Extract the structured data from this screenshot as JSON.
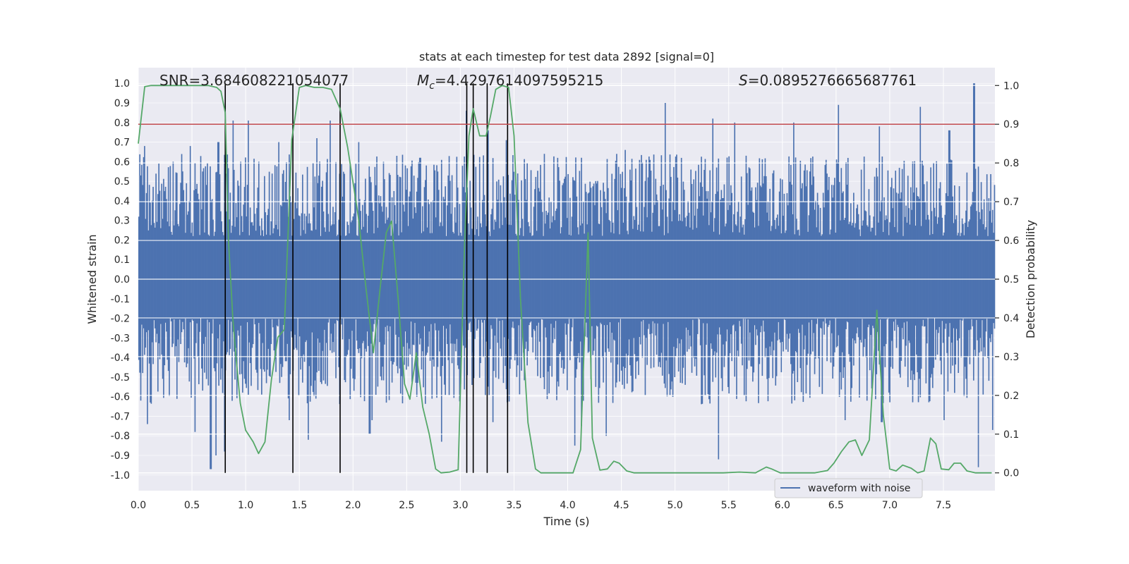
{
  "chart_data": {
    "type": "line",
    "title": "stats at each timestep for test data 2892 [signal=0]",
    "xlabel": "Time (s)",
    "ylabel": "Whitened strain",
    "y2label": "Detection probability",
    "xlim": [
      0.0,
      7.98
    ],
    "ylim": [
      -1.08,
      1.08
    ],
    "y2lim": [
      -0.046,
      1.046
    ],
    "x_ticks": [
      0.0,
      0.5,
      1.0,
      1.5,
      2.0,
      2.5,
      3.0,
      3.5,
      4.0,
      4.5,
      5.0,
      5.5,
      6.0,
      6.5,
      7.0,
      7.5
    ],
    "x_tick_labels": [
      "0.0",
      "0.5",
      "1.0",
      "1.5",
      "2.0",
      "2.5",
      "3.0",
      "3.5",
      "4.0",
      "4.5",
      "5.0",
      "5.5",
      "6.0",
      "6.5",
      "7.0",
      "7.5"
    ],
    "y_ticks": [
      1.0,
      0.9,
      0.8,
      0.7,
      0.6,
      0.5,
      0.4,
      0.3,
      0.2,
      0.1,
      0.0,
      -0.1,
      -0.2,
      -0.3,
      -0.4,
      -0.5,
      -0.6,
      -0.7,
      -0.8,
      -0.9,
      -1.0
    ],
    "y_tick_labels": [
      "1.0",
      "0.9",
      "0.8",
      "0.7",
      "0.6",
      "0.5",
      "0.4",
      "0.3",
      "0.2",
      "0.1",
      "0.0",
      "-0.1",
      "-0.2",
      "-0.3",
      "-0.4",
      "-0.5",
      "-0.6",
      "-0.7",
      "-0.8",
      "-0.9",
      "-1.0"
    ],
    "y2_ticks": [
      1.0,
      0.9,
      0.8,
      0.7,
      0.6,
      0.5,
      0.4,
      0.3,
      0.2,
      0.1,
      0.0
    ],
    "y2_tick_labels": [
      "1.0",
      "0.9",
      "0.8",
      "0.7",
      "0.6",
      "0.5",
      "0.4",
      "0.3",
      "0.2",
      "0.1",
      "0.0"
    ],
    "threshold": {
      "axis": "y2",
      "value": 0.9,
      "color": "#c44e52"
    },
    "event_lines": [
      0.81,
      1.44,
      1.88,
      3.06,
      3.12,
      3.25,
      3.44
    ],
    "annotations": [
      {
        "text": "SNR=3.684608221054077",
        "x": 0.19,
        "y": 1.02
      },
      {
        "text_prefix": "M",
        "text_sub": "c",
        "text_rest": "=4.4297614097595215",
        "x": 2.6,
        "y": 1.02
      },
      {
        "text_prefix": "S",
        "text_rest": "=0.0895276665687761",
        "x": 5.6,
        "y": 1.02
      }
    ],
    "series": [
      {
        "name": "waveform with noise",
        "axis": "y",
        "color": "#4c72b0",
        "x_start": 0.0,
        "x_end": 7.98,
        "n_samples": 900,
        "typical_envelope": [
          -0.4,
          0.4
        ],
        "peaks": [
          {
            "x": 0.05,
            "y": 0.68
          },
          {
            "x": 0.32,
            "y": 0.6
          },
          {
            "x": 0.48,
            "y": 0.68
          },
          {
            "x": 0.74,
            "y": 0.7
          },
          {
            "x": 0.88,
            "y": 0.81
          },
          {
            "x": 0.95,
            "y": 0.6
          },
          {
            "x": 1.02,
            "y": 0.81
          },
          {
            "x": 1.12,
            "y": 0.6
          },
          {
            "x": 1.3,
            "y": 0.7
          },
          {
            "x": 1.66,
            "y": 0.72
          },
          {
            "x": 1.78,
            "y": 0.81
          },
          {
            "x": 2.05,
            "y": 0.7
          },
          {
            "x": 2.4,
            "y": 0.63
          },
          {
            "x": 2.62,
            "y": 0.62
          },
          {
            "x": 3.05,
            "y": 0.86
          },
          {
            "x": 3.25,
            "y": 0.76
          },
          {
            "x": 3.42,
            "y": 0.71
          },
          {
            "x": 3.78,
            "y": 0.64
          },
          {
            "x": 4.12,
            "y": 0.62
          },
          {
            "x": 4.53,
            "y": 0.66
          },
          {
            "x": 4.9,
            "y": 0.9
          },
          {
            "x": 5.35,
            "y": 0.82
          },
          {
            "x": 5.55,
            "y": 0.8
          },
          {
            "x": 6.1,
            "y": 0.8
          },
          {
            "x": 6.52,
            "y": 0.89
          },
          {
            "x": 6.9,
            "y": 0.78
          },
          {
            "x": 7.28,
            "y": 0.88
          },
          {
            "x": 7.55,
            "y": 0.76
          },
          {
            "x": 7.78,
            "y": 1.0
          }
        ],
        "troughs": [
          {
            "x": 0.02,
            "y": -0.62
          },
          {
            "x": 0.08,
            "y": -0.74
          },
          {
            "x": 0.52,
            "y": -0.78
          },
          {
            "x": 0.67,
            "y": -0.97
          },
          {
            "x": 0.72,
            "y": -0.9
          },
          {
            "x": 0.8,
            "y": -0.88
          },
          {
            "x": 1.4,
            "y": -0.72
          },
          {
            "x": 1.58,
            "y": -0.82
          },
          {
            "x": 2.15,
            "y": -0.79
          },
          {
            "x": 2.17,
            "y": -0.72
          },
          {
            "x": 2.82,
            "y": -0.83
          },
          {
            "x": 3.3,
            "y": -0.73
          },
          {
            "x": 4.06,
            "y": -0.85
          },
          {
            "x": 4.12,
            "y": -0.75
          },
          {
            "x": 4.35,
            "y": -0.8
          },
          {
            "x": 5.4,
            "y": -0.92
          },
          {
            "x": 6.58,
            "y": -0.72
          },
          {
            "x": 6.92,
            "y": -0.73
          },
          {
            "x": 7.5,
            "y": -0.72
          },
          {
            "x": 7.82,
            "y": -0.96
          },
          {
            "x": 7.95,
            "y": -0.77
          }
        ]
      },
      {
        "name": "detection probability",
        "axis": "y2",
        "color": "#55a868",
        "points": [
          [
            0.0,
            0.85
          ],
          [
            0.06,
            0.997
          ],
          [
            0.12,
            1.0
          ],
          [
            0.25,
            1.0
          ],
          [
            0.4,
            1.0
          ],
          [
            0.55,
            1.0
          ],
          [
            0.65,
            1.0
          ],
          [
            0.73,
            0.995
          ],
          [
            0.77,
            0.985
          ],
          [
            0.81,
            0.93
          ],
          [
            0.84,
            0.6
          ],
          [
            0.88,
            0.4
          ],
          [
            0.91,
            0.3
          ],
          [
            0.95,
            0.18
          ],
          [
            1.0,
            0.11
          ],
          [
            1.07,
            0.08
          ],
          [
            1.12,
            0.05
          ],
          [
            1.18,
            0.08
          ],
          [
            1.24,
            0.24
          ],
          [
            1.3,
            0.35
          ],
          [
            1.36,
            0.37
          ],
          [
            1.43,
            0.86
          ],
          [
            1.5,
            0.995
          ],
          [
            1.56,
            1.0
          ],
          [
            1.64,
            0.995
          ],
          [
            1.72,
            0.995
          ],
          [
            1.8,
            0.99
          ],
          [
            1.88,
            0.94
          ],
          [
            1.95,
            0.84
          ],
          [
            2.05,
            0.66
          ],
          [
            2.12,
            0.48
          ],
          [
            2.19,
            0.31
          ],
          [
            2.25,
            0.47
          ],
          [
            2.31,
            0.62
          ],
          [
            2.36,
            0.65
          ],
          [
            2.42,
            0.45
          ],
          [
            2.48,
            0.23
          ],
          [
            2.53,
            0.19
          ],
          [
            2.59,
            0.31
          ],
          [
            2.65,
            0.17
          ],
          [
            2.71,
            0.1
          ],
          [
            2.77,
            0.01
          ],
          [
            2.82,
            0.0
          ],
          [
            2.9,
            0.002
          ],
          [
            2.98,
            0.008
          ],
          [
            3.04,
            0.6
          ],
          [
            3.08,
            0.87
          ],
          [
            3.12,
            0.94
          ],
          [
            3.18,
            0.87
          ],
          [
            3.24,
            0.87
          ],
          [
            3.28,
            0.92
          ],
          [
            3.33,
            0.99
          ],
          [
            3.39,
            1.0
          ],
          [
            3.45,
            0.995
          ],
          [
            3.5,
            0.87
          ],
          [
            3.56,
            0.45
          ],
          [
            3.63,
            0.13
          ],
          [
            3.7,
            0.01
          ],
          [
            3.75,
            0.0
          ],
          [
            3.85,
            0.0
          ],
          [
            3.95,
            0.0
          ],
          [
            4.05,
            0.0
          ],
          [
            4.12,
            0.06
          ],
          [
            4.19,
            0.62
          ],
          [
            4.23,
            0.09
          ],
          [
            4.3,
            0.007
          ],
          [
            4.37,
            0.01
          ],
          [
            4.43,
            0.03
          ],
          [
            4.48,
            0.025
          ],
          [
            4.55,
            0.005
          ],
          [
            4.62,
            0.0
          ],
          [
            4.8,
            0.0
          ],
          [
            5.0,
            0.0
          ],
          [
            5.2,
            0.0
          ],
          [
            5.45,
            0.0
          ],
          [
            5.6,
            0.002
          ],
          [
            5.75,
            0.0
          ],
          [
            5.85,
            0.015
          ],
          [
            5.9,
            0.01
          ],
          [
            5.98,
            0.0
          ],
          [
            6.12,
            0.0
          ],
          [
            6.3,
            0.0
          ],
          [
            6.42,
            0.006
          ],
          [
            6.48,
            0.025
          ],
          [
            6.55,
            0.055
          ],
          [
            6.62,
            0.08
          ],
          [
            6.68,
            0.085
          ],
          [
            6.74,
            0.045
          ],
          [
            6.81,
            0.085
          ],
          [
            6.88,
            0.42
          ],
          [
            6.94,
            0.15
          ],
          [
            7.0,
            0.01
          ],
          [
            7.06,
            0.005
          ],
          [
            7.12,
            0.02
          ],
          [
            7.2,
            0.012
          ],
          [
            7.26,
            0.0
          ],
          [
            7.32,
            0.005
          ],
          [
            7.38,
            0.09
          ],
          [
            7.43,
            0.075
          ],
          [
            7.48,
            0.01
          ],
          [
            7.55,
            0.008
          ],
          [
            7.6,
            0.025
          ],
          [
            7.66,
            0.025
          ],
          [
            7.72,
            0.005
          ],
          [
            7.8,
            0.0
          ],
          [
            7.95,
            0.0
          ]
        ]
      }
    ],
    "legend": {
      "position": "bottom-right",
      "entries": [
        {
          "label": "waveform with noise",
          "color": "#4c72b0"
        }
      ]
    },
    "colors": {
      "axes_bg": "#eaeaf2",
      "grid": "#ffffff",
      "event_line": "#000000"
    },
    "grid": true
  }
}
